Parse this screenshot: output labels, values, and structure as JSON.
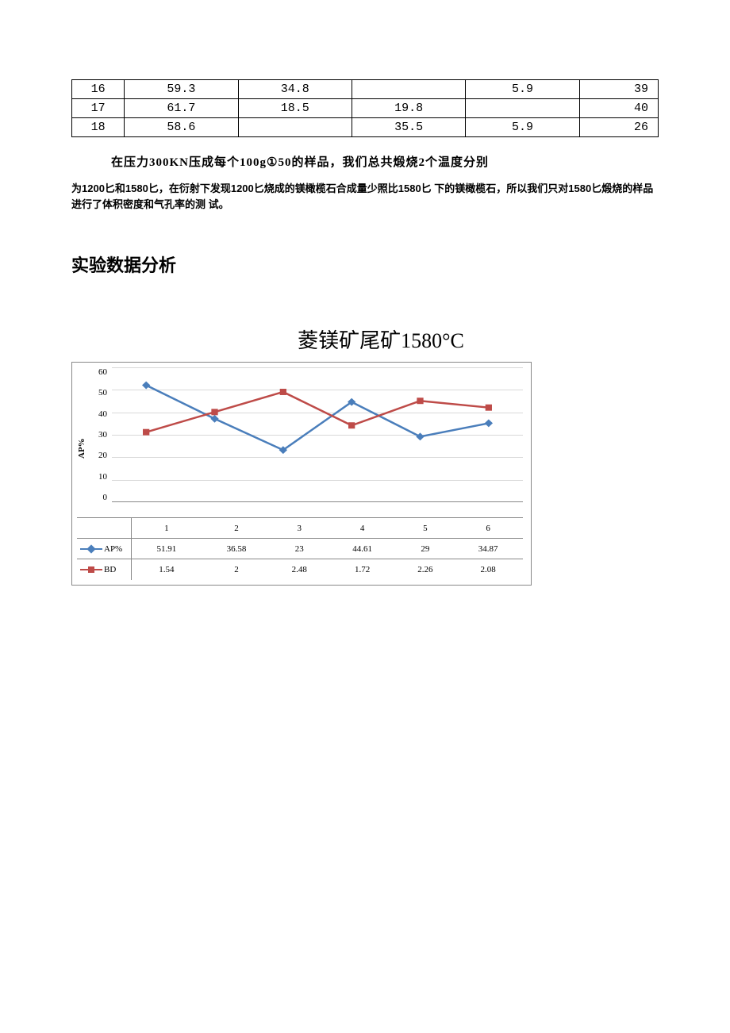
{
  "table": {
    "rows": [
      [
        "16",
        "59.3",
        "34.8",
        "",
        "5.9",
        "39"
      ],
      [
        "17",
        "61.7",
        "18.5",
        "19.8",
        "",
        "40"
      ],
      [
        "18",
        "58.6",
        "",
        "35.5",
        "5.9",
        "26"
      ]
    ]
  },
  "paragraph1": "在压力300KN压成每个100g①50的样品，我们总共煅烧2个温度分别",
  "paragraph2": "为1200匕和1580匕，在衍射下发现1200匕烧成的镁橄榄石合成量少照比1580匕 下的镁橄榄石，所以我们只对1580匕煅烧的样品进行了体积密度和气孔率的测 试。",
  "section_heading": "实验数据分析",
  "chart": {
    "title": "菱镁矿尾矿1580°C",
    "type": "line",
    "y_label": "AP%",
    "y_ticks": [
      "60",
      "50",
      "40",
      "30",
      "20",
      "10",
      "0"
    ],
    "ylim": [
      0,
      60
    ],
    "categories": [
      "1",
      "2",
      "3",
      "4",
      "5",
      "6"
    ],
    "series": [
      {
        "name": "AP%",
        "values": [
          51.91,
          36.58,
          23,
          44.61,
          29,
          34.87
        ],
        "display": [
          "51.91",
          "36.58",
          "23",
          "44.61",
          "29",
          "34.87"
        ],
        "marker": "diamond",
        "color": "#4a7ebb",
        "line_width": 2.5,
        "plot_values": [
          52,
          37,
          23,
          44.5,
          29,
          35
        ]
      },
      {
        "name": "BD",
        "values": [
          1.54,
          2,
          2.48,
          1.72,
          2.26,
          2.08
        ],
        "display": [
          "1.54",
          "2",
          "2.48",
          "1.72",
          "2.26",
          "2.08"
        ],
        "marker": "square",
        "color": "#be4b48",
        "line_width": 2.5,
        "plot_values": [
          31,
          40,
          49,
          34,
          45,
          42
        ]
      }
    ],
    "grid_color": "#d9d9d9",
    "axis_color": "#888888",
    "background": "#ffffff",
    "label_fontsize": 11,
    "title_fontsize": 26
  }
}
